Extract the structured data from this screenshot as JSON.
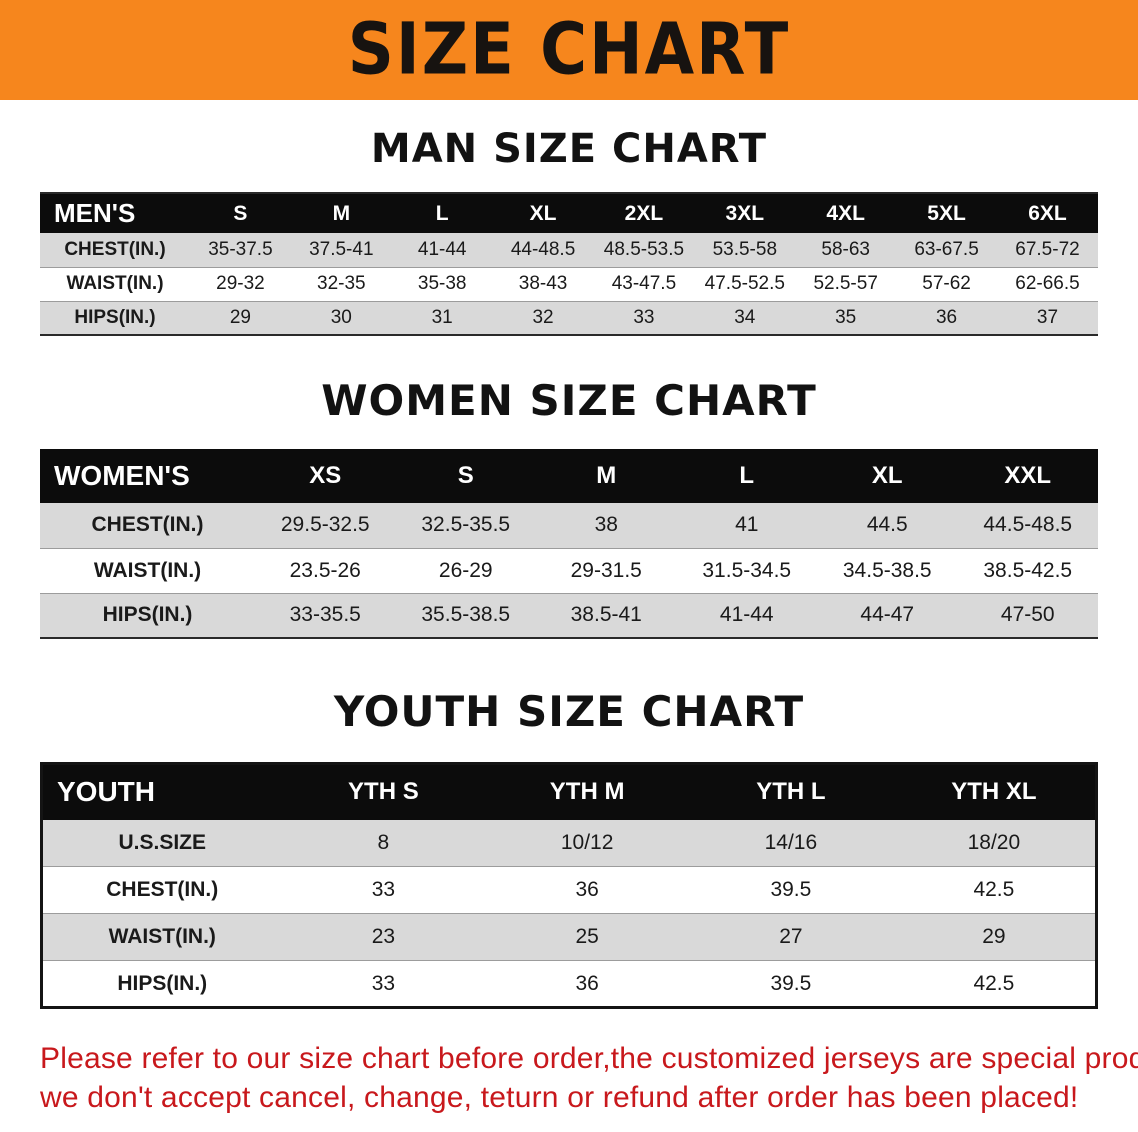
{
  "banner": {
    "title": "SIZE CHART",
    "bg_color": "#f6861d",
    "text_color": "#171310"
  },
  "sections": [
    {
      "heading": "MAN SIZE CHART",
      "table": {
        "header": [
          "MEN'S",
          "S",
          "M",
          "L",
          "XL",
          "2XL",
          "3XL",
          "4XL",
          "5XL",
          "6XL"
        ],
        "rows": [
          [
            "CHEST(IN.)",
            "35-37.5",
            "37.5-41",
            "41-44",
            "44-48.5",
            "48.5-53.5",
            "53.5-58",
            "58-63",
            "63-67.5",
            "67.5-72"
          ],
          [
            "WAIST(IN.)",
            "29-32",
            "32-35",
            "35-38",
            "38-43",
            "43-47.5",
            "47.5-52.5",
            "52.5-57",
            "57-62",
            "62-66.5"
          ],
          [
            "HIPS(IN.)",
            "29",
            "30",
            "31",
            "32",
            "33",
            "34",
            "35",
            "36",
            "37"
          ]
        ]
      }
    },
    {
      "heading": "WOMEN SIZE CHART",
      "table": {
        "header": [
          "WOMEN'S",
          "XS",
          "S",
          "M",
          "L",
          "XL",
          "XXL"
        ],
        "rows": [
          [
            "CHEST(IN.)",
            "29.5-32.5",
            "32.5-35.5",
            "38",
            "41",
            "44.5",
            "44.5-48.5"
          ],
          [
            "WAIST(IN.)",
            "23.5-26",
            "26-29",
            "29-31.5",
            "31.5-34.5",
            "34.5-38.5",
            "38.5-42.5"
          ],
          [
            "HIPS(IN.)",
            "33-35.5",
            "35.5-38.5",
            "38.5-41",
            "41-44",
            "44-47",
            "47-50"
          ]
        ]
      }
    },
    {
      "heading": "YOUTH SIZE CHART",
      "table": {
        "header": [
          "YOUTH",
          "YTH S",
          "YTH M",
          "YTH L",
          "YTH XL"
        ],
        "rows": [
          [
            "U.S.SIZE",
            "8",
            "10/12",
            "14/16",
            "18/20"
          ],
          [
            "CHEST(IN.)",
            "33",
            "36",
            "39.5",
            "42.5"
          ],
          [
            "WAIST(IN.)",
            "23",
            "25",
            "27",
            "29"
          ],
          [
            "HIPS(IN.)",
            "33",
            "36",
            "39.5",
            "42.5"
          ]
        ]
      }
    }
  ],
  "disclaimer": {
    "lines": [
      "Please refer to our size chart before order,the customized jerseys are special products,",
      "we don't accept cancel, change, teturn or refund after order has been placed!"
    ],
    "color": "#c8181c"
  }
}
